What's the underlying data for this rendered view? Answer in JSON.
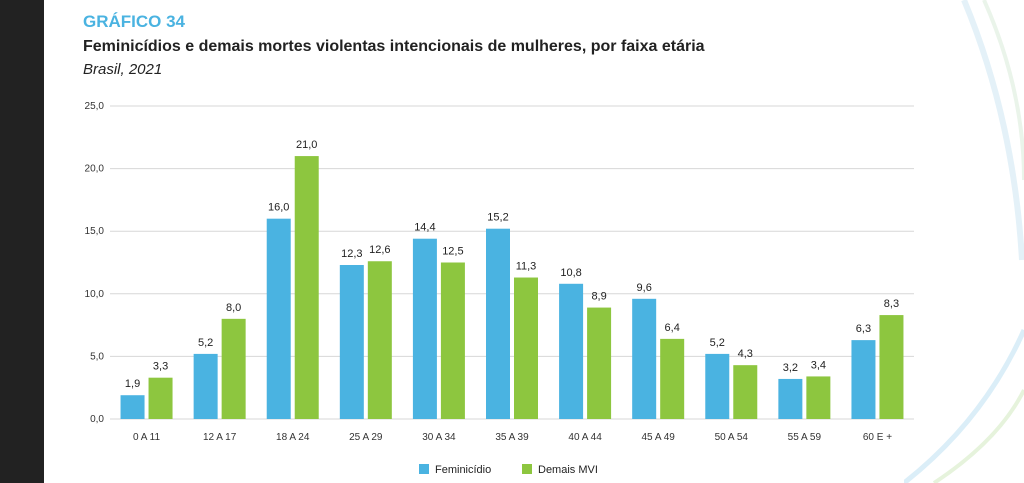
{
  "header": {
    "chart_number": "GRÁFICO 34",
    "title": "Feminicídios e demais mortes violentas intencionais de mulheres, por faixa etária",
    "subtitle": "Brasil, 2021"
  },
  "colors": {
    "feminicidio": "#4ab3e1",
    "demais_mvi": "#8dc63f",
    "gridline": "#d7d7d7",
    "accent": "#4ab3e1"
  },
  "chart_data": {
    "type": "bar",
    "categories": [
      "0 A 11",
      "12 A 17",
      "18 A 24",
      "25 A 29",
      "30 A 34",
      "35 A 39",
      "40 A 44",
      "45 A 49",
      "50 A 54",
      "55 A 59",
      "60 E +"
    ],
    "series": [
      {
        "name": "Feminicídio",
        "values": [
          1.9,
          5.2,
          16.0,
          12.3,
          14.4,
          15.2,
          10.8,
          9.6,
          5.2,
          3.2,
          6.3
        ],
        "labels": [
          "1,9",
          "5,2",
          "16,0",
          "12,3",
          "14,4",
          "15,2",
          "10,8",
          "9,6",
          "5,2",
          "3,2",
          "6,3"
        ]
      },
      {
        "name": "Demais MVI",
        "values": [
          3.3,
          8.0,
          21.0,
          12.6,
          12.5,
          11.3,
          8.9,
          6.4,
          4.3,
          3.4,
          8.3
        ],
        "labels": [
          "3,3",
          "8,0",
          "21,0",
          "12,6",
          "12,5",
          "11,3",
          "8,9",
          "6,4",
          "4,3",
          "3,4",
          "8,3"
        ]
      }
    ],
    "ylim": [
      0,
      25
    ],
    "yticks": [
      0,
      5,
      10,
      15,
      20,
      25
    ],
    "ytick_labels": [
      "0,0",
      "5,0",
      "10,0",
      "15,0",
      "20,0",
      "25,0"
    ],
    "grid": true,
    "legend_position": "bottom-center"
  }
}
